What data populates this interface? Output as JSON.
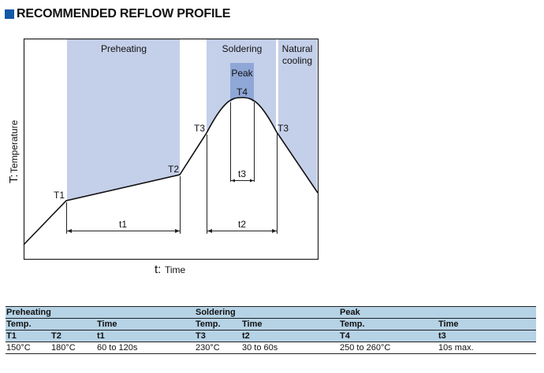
{
  "title": "RECOMMENDED REFLOW PROFILE",
  "colors": {
    "title_square": "#1358a8",
    "zone_fill": "#c4cfe9",
    "peak_fill": "#8fa7d6",
    "table_header": "#b6d3e6"
  },
  "diagram": {
    "zones": {
      "preheating": "Preheating",
      "soldering": "Soldering",
      "natural_cooling_1": "Natural",
      "natural_cooling_2": "cooling",
      "peak": "Peak"
    },
    "labels": {
      "T1": "T1",
      "T2": "T2",
      "T3_left": "T3",
      "T3_right": "T3",
      "T4": "T4",
      "t1": "t1",
      "t2": "t2",
      "t3": "t3"
    },
    "y_axis": {
      "symbol": "T:",
      "label": "Temperature"
    },
    "x_axis": {
      "symbol": "t:",
      "label": "Time"
    }
  },
  "table": {
    "groups": [
      "Preheating",
      "Soldering",
      "Peak"
    ],
    "sub_headers": [
      "Temp.",
      "",
      "Time",
      "Temp.",
      "Time",
      "Temp.",
      "Time"
    ],
    "symbols": [
      "T1",
      "T2",
      "t1",
      "T3",
      "t2",
      "T4",
      "t3"
    ],
    "values": [
      "150°C",
      "180°C",
      "60 to 120s",
      "230°C",
      "30 to 60s",
      "250 to 260°C",
      "10s max."
    ]
  }
}
